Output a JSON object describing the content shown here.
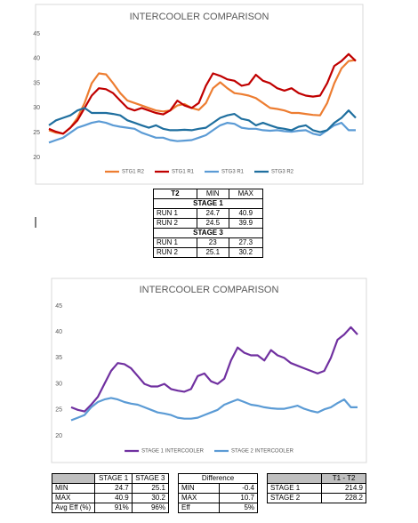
{
  "chart_data": [
    {
      "type": "line",
      "title": "INTERCOOLER COMPARISON",
      "ylim": [
        20,
        45
      ],
      "yticks": [
        20,
        25,
        30,
        35,
        40,
        45
      ],
      "grid": false,
      "legend": "bottom",
      "series": [
        {
          "name": "STG1 R2",
          "color": "#ed7d31",
          "values": [
            25.5,
            25,
            24.8,
            26,
            28,
            31,
            35,
            37,
            36.8,
            35,
            33,
            31.5,
            31,
            30.5,
            30,
            29.5,
            29.3,
            29.5,
            30.5,
            30.8,
            30,
            29.6,
            31,
            34,
            35.2,
            34,
            33,
            32.8,
            32.5,
            32,
            31,
            30,
            29.8,
            29.5,
            29,
            29,
            28.8,
            28.6,
            28.5,
            31,
            35,
            38,
            39.5,
            39.7
          ]
        },
        {
          "name": "STG1 R1",
          "color": "#c00000",
          "values": [
            25.8,
            25.2,
            24.8,
            26,
            27.5,
            30,
            32.5,
            34,
            33.8,
            33,
            31.5,
            30,
            29.5,
            30,
            29.5,
            29,
            28.7,
            29.5,
            31.5,
            30.5,
            30,
            31,
            34.5,
            37,
            36.5,
            35.8,
            35.5,
            34.5,
            34.8,
            36.7,
            35.5,
            35,
            34,
            33.5,
            34,
            33,
            32.5,
            32.3,
            32.5,
            35,
            38.5,
            39.5,
            40.9,
            39.5
          ]
        },
        {
          "name": "STG3 R1",
          "color": "#5b9bd5",
          "values": [
            23,
            23.5,
            24,
            25,
            26,
            26.5,
            27,
            27.3,
            27,
            26.5,
            26.2,
            26,
            25.8,
            25,
            24.5,
            24,
            24,
            23.5,
            23.3,
            23.4,
            23.5,
            24,
            24.5,
            25.5,
            26.5,
            27,
            26.8,
            26,
            25.8,
            25.8,
            25.5,
            25.4,
            25.5,
            25.3,
            25.2,
            25.4,
            25.5,
            24.8,
            24.5,
            25.5,
            26.5,
            27,
            25.5,
            25.5
          ]
        },
        {
          "name": "STG3 R2",
          "color": "#1f6f9f",
          "values": [
            26.5,
            27.5,
            28,
            28.5,
            29.5,
            30,
            29,
            29,
            29,
            28.8,
            28.5,
            27.5,
            27,
            26.5,
            26,
            26.5,
            25.8,
            25.5,
            25.5,
            25.6,
            25.5,
            25.8,
            26,
            27,
            28,
            28.5,
            28.8,
            27.8,
            27.5,
            26.5,
            27,
            26.5,
            26,
            25.8,
            25.5,
            26.2,
            26.5,
            25.5,
            25.1,
            25.5,
            27,
            28,
            29.5,
            28
          ]
        }
      ]
    },
    {
      "type": "line",
      "title": "INTERCOOLER COMPARISON",
      "ylim": [
        20,
        45
      ],
      "yticks": [
        20,
        25,
        30,
        35,
        40,
        45
      ],
      "grid": false,
      "legend": "bottom",
      "series": [
        {
          "name": "STAGE 1 INTERCOOLER",
          "color": "#7030a0",
          "values": [
            25.5,
            25,
            24.7,
            26,
            27.5,
            30,
            32.5,
            34,
            33.8,
            33,
            31.5,
            30,
            29.5,
            29.5,
            30,
            29,
            28.7,
            28.5,
            29,
            31.5,
            32,
            30.5,
            30,
            31,
            34.5,
            37,
            36,
            35.5,
            35.5,
            34.5,
            36.5,
            35.5,
            35,
            34,
            33.5,
            33,
            32.5,
            32,
            32.5,
            35,
            38.5,
            39.5,
            40.9,
            39.5
          ]
        },
        {
          "name": "STAGE 2 INTERCOOLER",
          "color": "#5b9bd5",
          "values": [
            23,
            23.5,
            24,
            25.5,
            26.5,
            27,
            27.3,
            27,
            26.5,
            26.2,
            26,
            25.5,
            25,
            24.5,
            24.3,
            24,
            23.5,
            23.3,
            23.3,
            23.5,
            24,
            24.5,
            25,
            26,
            26.5,
            27,
            26.5,
            26,
            25.8,
            25.5,
            25.3,
            25.2,
            25.2,
            25.5,
            25.8,
            25.2,
            24.8,
            24.5,
            25.1,
            25.5,
            26.3,
            27,
            25.5,
            25.5
          ]
        }
      ]
    }
  ],
  "tables": [
    {
      "header": [
        "T2",
        "MIN",
        "MAX"
      ],
      "sections": [
        {
          "title": "STAGE 1",
          "rows": [
            [
              "RUN 1",
              "24.7",
              "40.9"
            ],
            [
              "RUN 2",
              "24.5",
              "39.9"
            ]
          ]
        },
        {
          "title": "STAGE 3",
          "rows": [
            [
              "RUN 1",
              "23",
              "27.3"
            ],
            [
              "RUN 2",
              "25.1",
              "30.2"
            ]
          ]
        }
      ]
    },
    {
      "header": [
        "STAGE 1",
        "STAGE 3"
      ],
      "rows": [
        [
          "MIN",
          "24.7",
          "25.1"
        ],
        [
          "MAX",
          "40.9",
          "30.2"
        ],
        [
          "Avg Eff (%)",
          "91%",
          "96%"
        ]
      ]
    },
    {
      "header": [
        "Difference"
      ],
      "rows": [
        [
          "MIN",
          "-0.4"
        ],
        [
          "MAX",
          "10.7"
        ],
        [
          "Eff",
          "5%"
        ]
      ]
    },
    {
      "header": [
        "T1 - T2"
      ],
      "rows": [
        [
          "STAGE 1",
          "214.9"
        ],
        [
          "STAGE 2",
          "228.2"
        ]
      ]
    }
  ]
}
